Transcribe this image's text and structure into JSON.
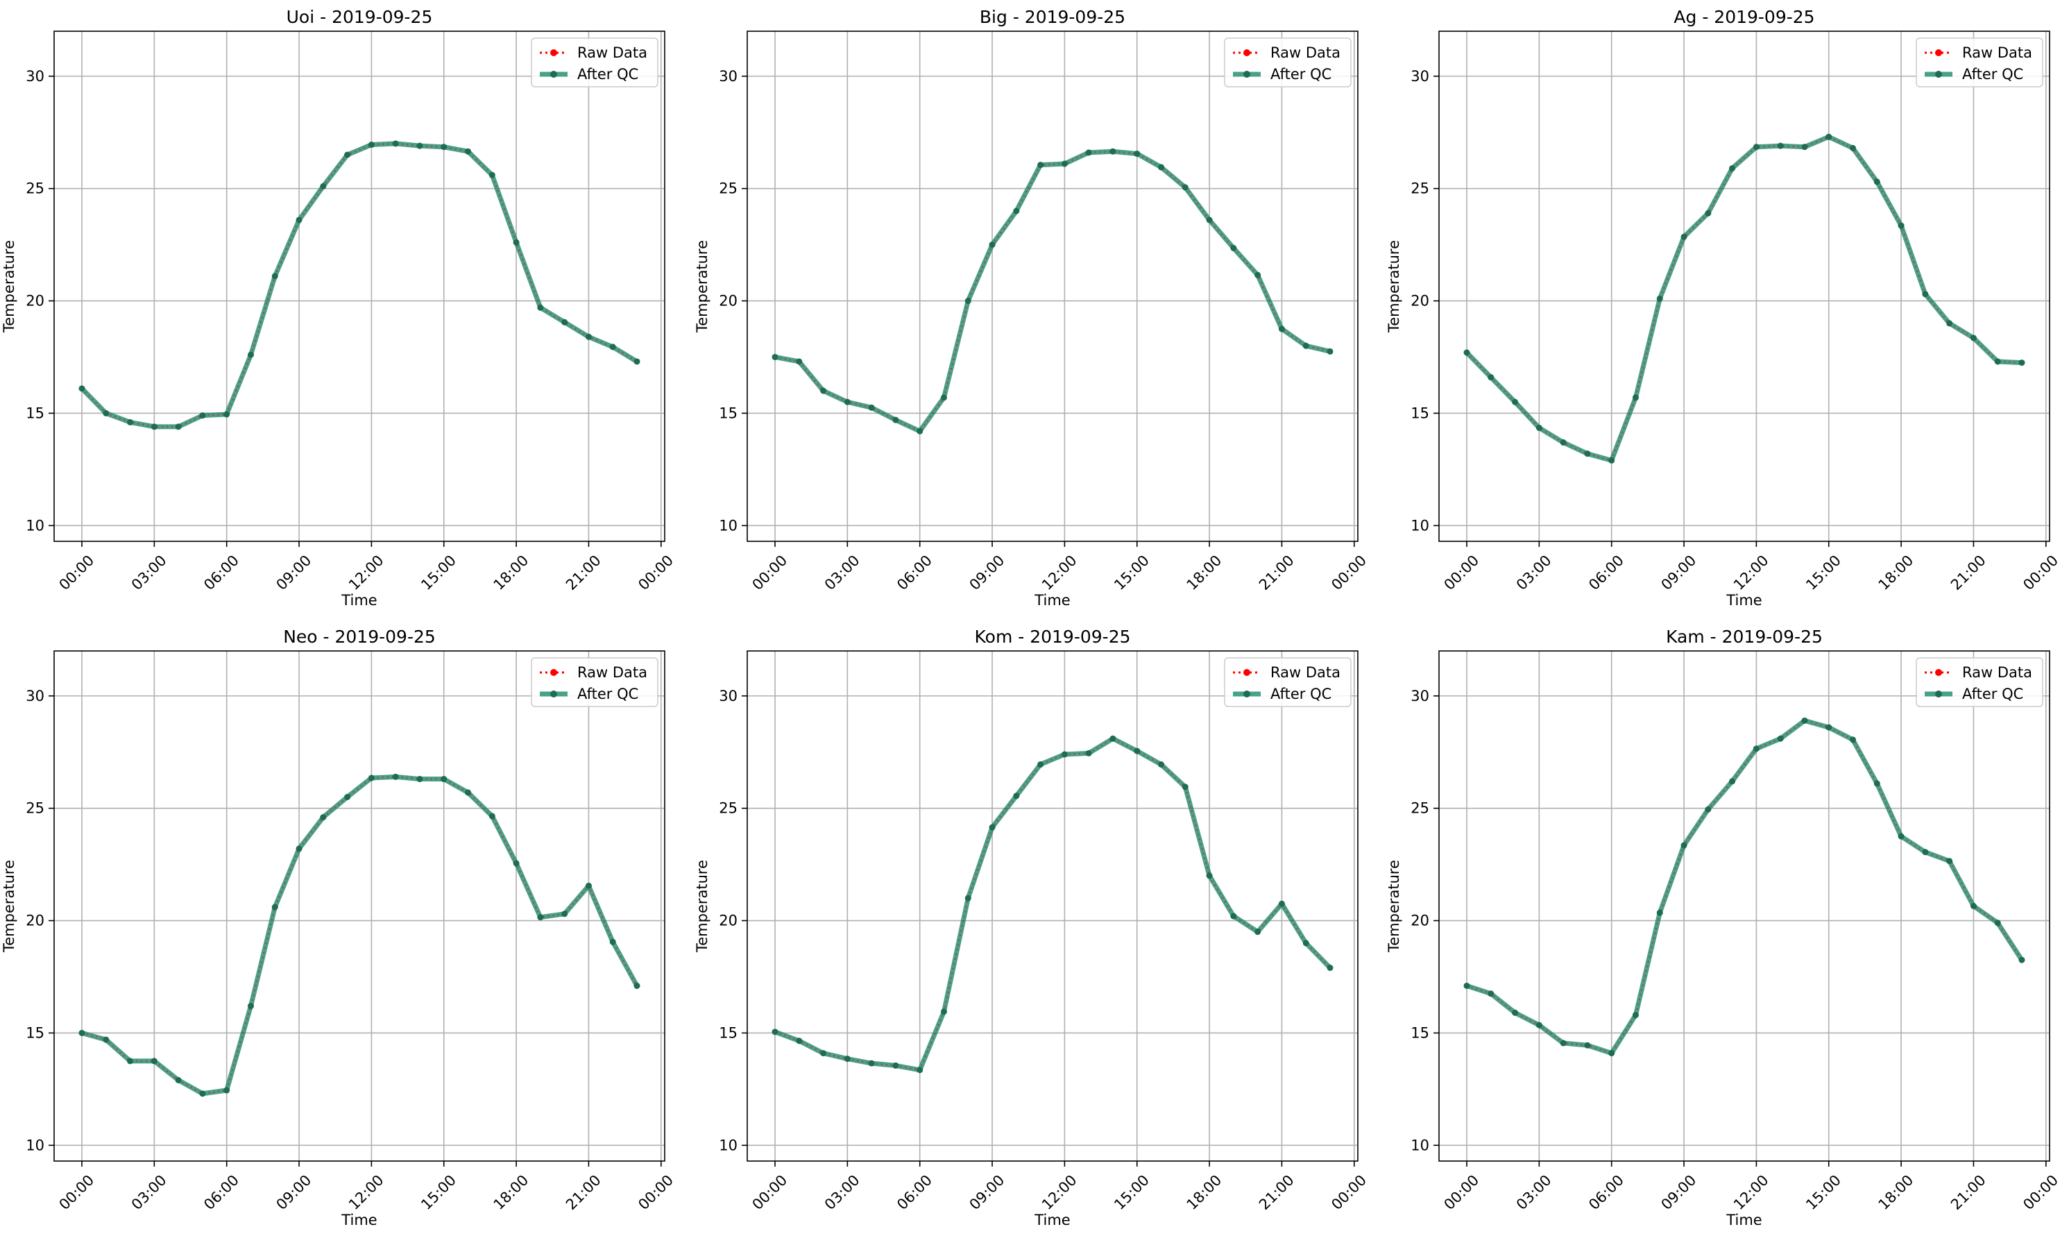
{
  "colors": {
    "raw": "#ff0000",
    "qc": "#1a8a6c",
    "qc_marker": "#1f6b55",
    "grid": "#b0b0b0",
    "axes": "#000000"
  },
  "legend": {
    "raw_label": "Raw Data",
    "qc_label": "After QC",
    "placement": "top-right"
  },
  "chart_data": [
    {
      "type": "line",
      "title": "Uoi - 2019-09-25",
      "xlabel": "Time",
      "ylabel": "Temperature",
      "x_ticks": [
        "00:00",
        "03:00",
        "06:00",
        "09:00",
        "12:00",
        "15:00",
        "18:00",
        "21:00",
        "00:00"
      ],
      "y_ticks": [
        10,
        15,
        20,
        25,
        30
      ],
      "ylim": [
        9.3,
        32.0
      ],
      "xlim_hours": [
        -1.15,
        24.15
      ],
      "grid": true,
      "series": [
        {
          "name": "Raw Data",
          "values": [
            16.1,
            15.0,
            14.6,
            14.4,
            14.4,
            14.9,
            14.95,
            17.6,
            21.1,
            23.6,
            25.1,
            26.5,
            26.95,
            27.0,
            26.9,
            26.85,
            26.65,
            25.6,
            22.6,
            19.7,
            19.05,
            18.4,
            17.95,
            17.3
          ]
        },
        {
          "name": "After QC",
          "values": [
            16.1,
            15.0,
            14.6,
            14.4,
            14.4,
            14.9,
            14.95,
            17.6,
            21.1,
            23.6,
            25.1,
            26.5,
            26.95,
            27.0,
            26.9,
            26.85,
            26.65,
            25.6,
            22.6,
            19.7,
            19.05,
            18.4,
            17.95,
            17.3
          ]
        }
      ]
    },
    {
      "type": "line",
      "title": "Big - 2019-09-25",
      "xlabel": "Time",
      "ylabel": "Temperature",
      "x_ticks": [
        "00:00",
        "03:00",
        "06:00",
        "09:00",
        "12:00",
        "15:00",
        "18:00",
        "21:00",
        "00:00"
      ],
      "y_ticks": [
        10,
        15,
        20,
        25,
        30
      ],
      "ylim": [
        9.3,
        32.0
      ],
      "xlim_hours": [
        -1.15,
        24.15
      ],
      "grid": true,
      "series": [
        {
          "name": "Raw Data",
          "values": [
            17.5,
            17.3,
            16.0,
            15.5,
            15.25,
            14.7,
            14.2,
            15.7,
            20.0,
            22.5,
            24.0,
            26.05,
            26.1,
            26.6,
            26.65,
            26.55,
            25.95,
            25.05,
            23.6,
            22.35,
            21.15,
            18.75,
            18.0,
            17.75
          ]
        },
        {
          "name": "After QC",
          "values": [
            17.5,
            17.3,
            16.0,
            15.5,
            15.25,
            14.7,
            14.2,
            15.7,
            20.0,
            22.5,
            24.0,
            26.05,
            26.1,
            26.6,
            26.65,
            26.55,
            25.95,
            25.05,
            23.6,
            22.35,
            21.15,
            18.75,
            18.0,
            17.75
          ]
        }
      ]
    },
    {
      "type": "line",
      "title": "Ag - 2019-09-25",
      "xlabel": "Time",
      "ylabel": "Temperature",
      "x_ticks": [
        "00:00",
        "03:00",
        "06:00",
        "09:00",
        "12:00",
        "15:00",
        "18:00",
        "21:00",
        "00:00"
      ],
      "y_ticks": [
        10,
        15,
        20,
        25,
        30
      ],
      "ylim": [
        9.3,
        32.0
      ],
      "xlim_hours": [
        -1.15,
        24.15
      ],
      "grid": true,
      "series": [
        {
          "name": "Raw Data",
          "values": [
            17.7,
            16.6,
            15.5,
            14.35,
            13.7,
            13.2,
            12.9,
            15.7,
            20.1,
            22.85,
            23.9,
            25.9,
            26.85,
            26.9,
            26.85,
            27.3,
            26.8,
            25.3,
            23.35,
            20.3,
            19.0,
            18.35,
            17.3,
            17.25
          ]
        },
        {
          "name": "After QC",
          "values": [
            17.7,
            16.6,
            15.5,
            14.35,
            13.7,
            13.2,
            12.9,
            15.7,
            20.1,
            22.85,
            23.9,
            25.9,
            26.85,
            26.9,
            26.85,
            27.3,
            26.8,
            25.3,
            23.35,
            20.3,
            19.0,
            18.35,
            17.3,
            17.25
          ]
        }
      ]
    },
    {
      "type": "line",
      "title": "Neo - 2019-09-25",
      "xlabel": "Time",
      "ylabel": "Temperature",
      "x_ticks": [
        "00:00",
        "03:00",
        "06:00",
        "09:00",
        "12:00",
        "15:00",
        "18:00",
        "21:00",
        "00:00"
      ],
      "y_ticks": [
        10,
        15,
        20,
        25,
        30
      ],
      "ylim": [
        9.3,
        32.0
      ],
      "xlim_hours": [
        -1.15,
        24.15
      ],
      "grid": true,
      "series": [
        {
          "name": "Raw Data",
          "values": [
            15.0,
            14.7,
            13.75,
            13.75,
            12.9,
            12.3,
            12.45,
            16.2,
            20.6,
            23.2,
            24.6,
            25.5,
            26.35,
            26.4,
            26.3,
            26.3,
            25.7,
            24.65,
            22.55,
            20.15,
            20.3,
            21.55,
            19.05,
            17.1
          ]
        },
        {
          "name": "After QC",
          "values": [
            15.0,
            14.7,
            13.75,
            13.75,
            12.9,
            12.3,
            12.45,
            16.2,
            20.6,
            23.2,
            24.6,
            25.5,
            26.35,
            26.4,
            26.3,
            26.3,
            25.7,
            24.65,
            22.55,
            20.15,
            20.3,
            21.55,
            19.05,
            17.1
          ]
        }
      ]
    },
    {
      "type": "line",
      "title": "Kom - 2019-09-25",
      "xlabel": "Time",
      "ylabel": "Temperature",
      "x_ticks": [
        "00:00",
        "03:00",
        "06:00",
        "09:00",
        "12:00",
        "15:00",
        "18:00",
        "21:00",
        "00:00"
      ],
      "y_ticks": [
        10,
        15,
        20,
        25,
        30
      ],
      "ylim": [
        9.3,
        32.0
      ],
      "xlim_hours": [
        -1.15,
        24.15
      ],
      "grid": true,
      "series": [
        {
          "name": "Raw Data",
          "values": [
            15.05,
            14.65,
            14.1,
            13.85,
            13.65,
            13.55,
            13.35,
            15.95,
            21.0,
            24.15,
            25.55,
            26.95,
            27.4,
            27.45,
            28.1,
            27.55,
            26.95,
            25.95,
            22.0,
            20.2,
            19.5,
            20.75,
            19.0,
            17.9
          ]
        },
        {
          "name": "After QC",
          "values": [
            15.05,
            14.65,
            14.1,
            13.85,
            13.65,
            13.55,
            13.35,
            15.95,
            21.0,
            24.15,
            25.55,
            26.95,
            27.4,
            27.45,
            28.1,
            27.55,
            26.95,
            25.95,
            22.0,
            20.2,
            19.5,
            20.75,
            19.0,
            17.9
          ]
        }
      ]
    },
    {
      "type": "line",
      "title": "Kam - 2019-09-25",
      "xlabel": "Time",
      "ylabel": "Temperature",
      "x_ticks": [
        "00:00",
        "03:00",
        "06:00",
        "09:00",
        "12:00",
        "15:00",
        "18:00",
        "21:00",
        "00:00"
      ],
      "y_ticks": [
        10,
        15,
        20,
        25,
        30
      ],
      "ylim": [
        9.3,
        32.0
      ],
      "xlim_hours": [
        -1.15,
        24.15
      ],
      "grid": true,
      "series": [
        {
          "name": "Raw Data",
          "values": [
            17.1,
            16.75,
            15.9,
            15.35,
            14.55,
            14.45,
            14.1,
            15.8,
            20.35,
            23.35,
            24.95,
            26.2,
            27.65,
            28.1,
            28.9,
            28.6,
            28.05,
            26.1,
            23.75,
            23.05,
            22.65,
            20.65,
            19.9,
            18.25
          ]
        },
        {
          "name": "After QC",
          "values": [
            17.1,
            16.75,
            15.9,
            15.35,
            14.55,
            14.45,
            14.1,
            15.8,
            20.35,
            23.35,
            24.95,
            26.2,
            27.65,
            28.1,
            28.9,
            28.6,
            28.05,
            26.1,
            23.75,
            23.05,
            22.65,
            20.65,
            19.9,
            18.25
          ]
        }
      ]
    }
  ]
}
